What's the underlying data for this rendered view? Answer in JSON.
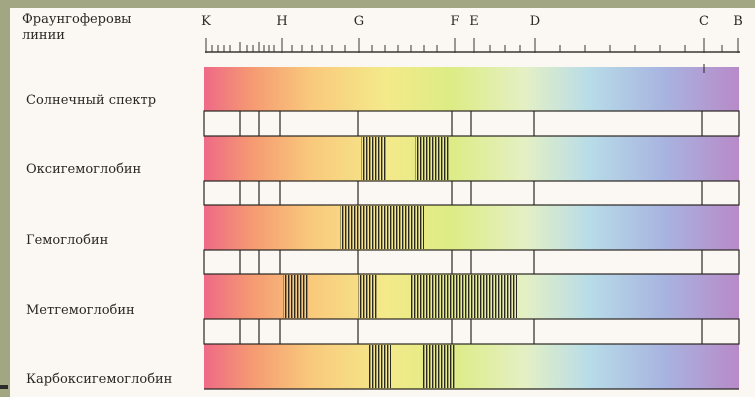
{
  "header": {
    "title_line1": "Фраунгоферовы",
    "title_line2": "линии"
  },
  "fraunhofer_lines": [
    {
      "letter": "K"
    },
    {
      "letter": "H"
    },
    {
      "letter": "G"
    },
    {
      "letter": "F"
    },
    {
      "letter": "E"
    },
    {
      "letter": "D"
    },
    {
      "letter": "C"
    },
    {
      "letter": "B"
    }
  ],
  "spectra": [
    {
      "label": "Солнечный спектр",
      "absorption_bands": []
    },
    {
      "label": "Оксигемоглобин",
      "absorption_bands": [
        "band-1",
        "band-2"
      ]
    },
    {
      "label": "Гемоглобин",
      "absorption_bands": [
        "band-1"
      ]
    },
    {
      "label": "Метгемоглобин",
      "absorption_bands": [
        "band-1",
        "band-2",
        "band-3"
      ]
    },
    {
      "label": "Карбоксигемоглобин",
      "absorption_bands": [
        "band-1",
        "band-2"
      ]
    }
  ],
  "colors": {
    "background": "#a3a682",
    "panel": "#fbf8f3",
    "violet": "#e8607a",
    "red_end": "#c08fc0"
  }
}
